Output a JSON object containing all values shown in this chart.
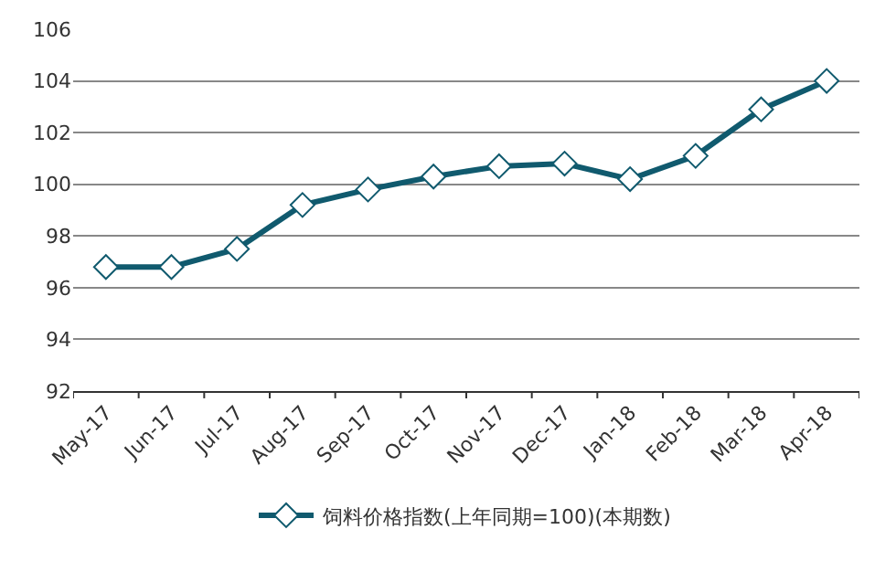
{
  "chart_data": {
    "type": "line",
    "categories": [
      "May-17",
      "Jun-17",
      "Jul-17",
      "Aug-17",
      "Sep-17",
      "Oct-17",
      "Nov-17",
      "Dec-17",
      "Jan-18",
      "Feb-18",
      "Mar-18",
      "Apr-18"
    ],
    "series": [
      {
        "name": "饲料价格指数(上年同期=100)(本期数)",
        "color": "#105a6e",
        "values": [
          96.8,
          96.8,
          97.5,
          99.2,
          99.8,
          100.3,
          100.7,
          100.8,
          100.2,
          101.1,
          102.9,
          104.0
        ]
      }
    ],
    "ylim": [
      92,
      106
    ],
    "yticks": [
      92,
      94,
      96,
      98,
      100,
      102,
      104,
      106
    ],
    "grid": "y",
    "legend": "bottom",
    "marker": "diamond",
    "line_style": "solid"
  }
}
